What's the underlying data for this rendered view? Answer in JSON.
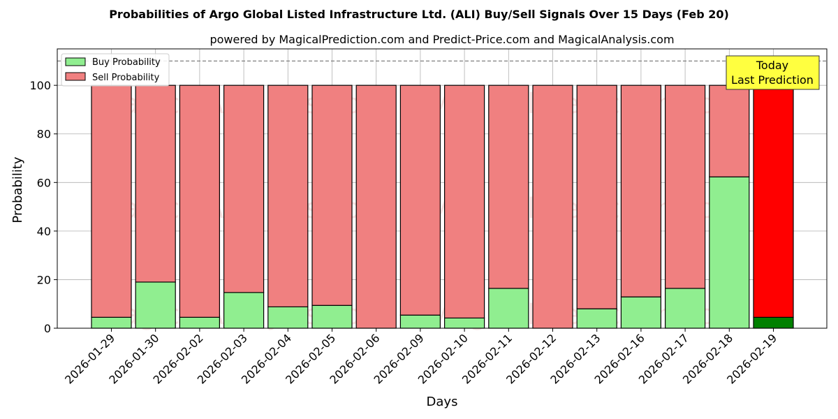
{
  "chart_data": {
    "type": "bar",
    "stacked": true,
    "title": "Probabilities of Argo Global Listed Infrastructure Ltd. (ALI) Buy/Sell Signals Over 15 Days (Feb 20)",
    "subtitle": "powered by MagicalPrediction.com and Predict-Price.com and MagicalAnalysis.com",
    "xlabel": "Days",
    "ylabel": "Probability",
    "ylim": [
      0,
      115
    ],
    "yticks": [
      0,
      20,
      40,
      60,
      80,
      100
    ],
    "reference_line": 110,
    "grid": true,
    "legend_position": "top-left",
    "categories": [
      "2026-01-29",
      "2026-01-30",
      "2026-02-02",
      "2026-02-03",
      "2026-02-04",
      "2026-02-05",
      "2026-02-06",
      "2026-02-09",
      "2026-02-10",
      "2026-02-11",
      "2026-02-12",
      "2026-02-13",
      "2026-02-16",
      "2026-02-17",
      "2026-02-18",
      "2026-02-19"
    ],
    "series": [
      {
        "name": "Buy Probability",
        "values": [
          4.5,
          19,
          4.5,
          14.7,
          8.8,
          9.4,
          0,
          5.4,
          4.2,
          16.4,
          0,
          8,
          12.9,
          16.4,
          62.3,
          4.5
        ]
      },
      {
        "name": "Sell Probability",
        "values": [
          95.5,
          81,
          95.5,
          85.3,
          91.2,
          90.6,
          100,
          94.6,
          95.8,
          83.6,
          100,
          92,
          87.1,
          83.6,
          37.7,
          95.5
        ]
      }
    ],
    "colors": {
      "buy": "#90ee90",
      "sell": "#f08080",
      "buy_today": "#008000",
      "sell_today": "#ff0000",
      "today_box": "#ffff40"
    },
    "annotation": {
      "line1": "Today",
      "line2": "Last Prediction"
    },
    "watermarks": [
      "MagicalAnalysis.com",
      "MagicalPrediction.com"
    ]
  }
}
